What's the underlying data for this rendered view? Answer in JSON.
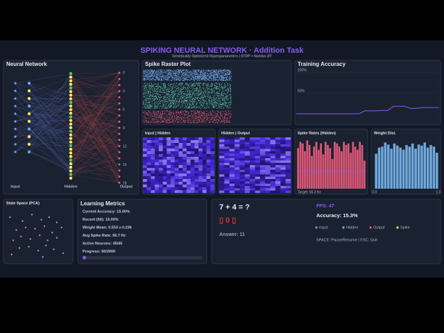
{
  "header": {
    "title": "SPIKING NEURAL NETWORK · Addition Task",
    "subtitle": "Genetically Optimized Hyperparameters | STDP + Numba JIT"
  },
  "network": {
    "title": "Neural Network",
    "layer_labels": [
      "Input",
      "Hidden",
      "Output"
    ],
    "output_ticks": [
      "0",
      "3",
      "6",
      "9",
      "12",
      "15",
      "18"
    ]
  },
  "raster": {
    "title": "Spike Raster Plot"
  },
  "accuracy": {
    "title": "Training Accuracy",
    "ylim": [
      0,
      100
    ],
    "yticks": [
      {
        "value": 100,
        "label": "100%"
      },
      {
        "value": 50,
        "label": "50%"
      }
    ],
    "color": "#8a5cf0",
    "values": [
      0,
      0,
      0,
      0,
      0,
      0,
      0,
      0,
      0,
      0,
      0,
      0,
      7,
      7,
      7,
      8,
      8,
      18,
      18,
      18,
      13,
      13,
      15,
      15,
      15,
      15
    ]
  },
  "heatmaps": [
    {
      "title": "Input | Hidden"
    },
    {
      "title": "Hidden | Output"
    }
  ],
  "spike_rates": {
    "title": "Spike Rates (Hidden)",
    "color": "#e05878",
    "ylim": [
      0,
      160
    ],
    "values": [
      130,
      150,
      145,
      120,
      155,
      140,
      105,
      135,
      150,
      125,
      145,
      110,
      150,
      140,
      130,
      95,
      150,
      145,
      135,
      120,
      150,
      140,
      145,
      115,
      150,
      135,
      125,
      150,
      140,
      90
    ],
    "target": {
      "value": 56.3,
      "label": "Target: 56.3 Hz"
    }
  },
  "weights": {
    "title": "Weight Dist.",
    "color": "#6fa8dc",
    "ylim": [
      0,
      100
    ],
    "xlim": [
      0,
      1
    ],
    "xticks": [
      {
        "value": 0,
        "label": "0.0"
      },
      {
        "value": 1,
        "label": "1.0"
      }
    ],
    "values": [
      68,
      80,
      82,
      90,
      86,
      78,
      88,
      84,
      80,
      76,
      85,
      82,
      88,
      78,
      86,
      84,
      90,
      80,
      85,
      82,
      70
    ]
  },
  "pca": {
    "title": "State Space (PCA)",
    "xlim": [
      -1,
      1
    ],
    "ylim": [
      -1,
      1
    ],
    "points": [
      [
        -0.9,
        0.7
      ],
      [
        -0.5,
        0.55
      ],
      [
        -0.2,
        0.8
      ],
      [
        0.1,
        0.6
      ],
      [
        0.35,
        0.7
      ],
      [
        0.6,
        0.5
      ],
      [
        -0.7,
        0.2
      ],
      [
        -0.4,
        0.3
      ],
      [
        -0.1,
        0.25
      ],
      [
        0.2,
        0.35
      ],
      [
        0.45,
        0.1
      ],
      [
        0.75,
        0.3
      ],
      [
        -0.8,
        -0.2
      ],
      [
        -0.55,
        -0.05
      ],
      [
        -0.25,
        -0.15
      ],
      [
        0.05,
        0.0
      ],
      [
        0.3,
        -0.2
      ],
      [
        0.6,
        -0.1
      ],
      [
        -0.6,
        -0.5
      ],
      [
        -0.3,
        -0.45
      ],
      [
        0.0,
        -0.6
      ],
      [
        0.25,
        -0.4
      ],
      [
        0.5,
        -0.55
      ],
      [
        -0.85,
        -0.75
      ],
      [
        0.8,
        -0.7
      ],
      [
        0.15,
        -0.85
      ]
    ]
  },
  "metrics": {
    "title": "Learning Metrics",
    "lines": [
      "Current Accuracy: 15.00%",
      "Recent (50): 15.00%",
      "Weight Mean: 0.553 ± 0.236",
      "Avg Spike Rate: 56.7 Hz",
      "Active Neurons: 45/45",
      "Progress: 60/2000"
    ]
  },
  "task": {
    "question": "7 + 4 = ?",
    "prediction": "▯ 0 ▯",
    "answer": "Answer: 11"
  },
  "status": {
    "fps": "FPS: 47",
    "accuracy": "Accuracy: 15.3%",
    "legend": [
      {
        "name": "Input",
        "color": "#7aa0e0"
      },
      {
        "name": "Hidden",
        "color": "#5fc9c0"
      },
      {
        "name": "Output",
        "color": "#e0607a"
      },
      {
        "name": "Spike",
        "color": "#ffe860"
      }
    ],
    "help": "SPACE: Pause/Resume  |  ESC: Quit"
  }
}
